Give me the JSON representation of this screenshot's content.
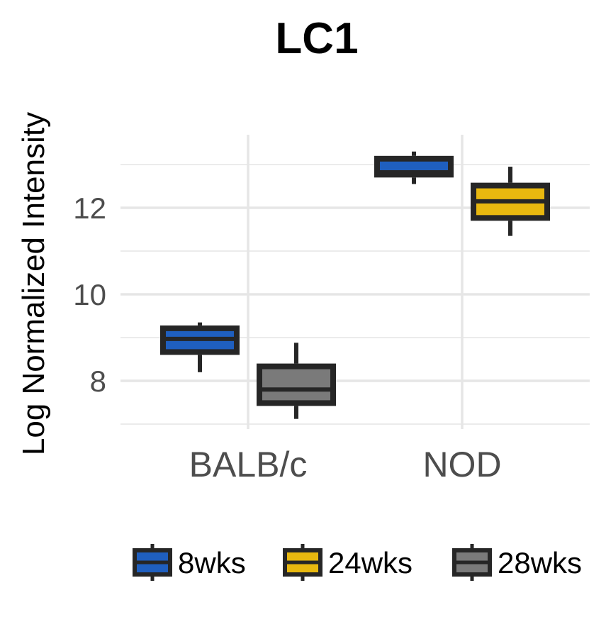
{
  "chart_data": {
    "type": "box",
    "title": "LC1",
    "xlabel": "",
    "ylabel": "Log Normalized Intensity",
    "ylim": [
      7.0,
      13.6
    ],
    "yticks": [
      8,
      10,
      12
    ],
    "categories": [
      "BALB/c",
      "NOD"
    ],
    "grid": true,
    "legend_position": "bottom",
    "series": [
      {
        "name": "8wks",
        "color": "#1f5fbf",
        "category": "BALB/c",
        "whisker_low": 8.2,
        "q1": 8.6,
        "median": 8.97,
        "q3": 9.28,
        "whisker_high": 9.35
      },
      {
        "name": "28wks",
        "color": "#7a7a7a",
        "category": "BALB/c",
        "whisker_low": 7.12,
        "q1": 7.42,
        "median": 7.8,
        "q3": 8.4,
        "whisker_high": 8.88
      },
      {
        "name": "8wks",
        "color": "#1f5fbf",
        "category": "NOD",
        "whisker_low": 12.55,
        "q1": 12.7,
        "median": 12.82,
        "q3": 13.2,
        "whisker_high": 13.3
      },
      {
        "name": "24wks",
        "color": "#e8b80f",
        "category": "NOD",
        "whisker_low": 11.35,
        "q1": 11.7,
        "median": 12.15,
        "q3": 12.58,
        "whisker_high": 12.95
      }
    ],
    "legend": [
      {
        "label": "8wks",
        "color": "#1f5fbf"
      },
      {
        "label": "24wks",
        "color": "#e8b80f"
      },
      {
        "label": "28wks",
        "color": "#7a7a7a"
      }
    ]
  }
}
